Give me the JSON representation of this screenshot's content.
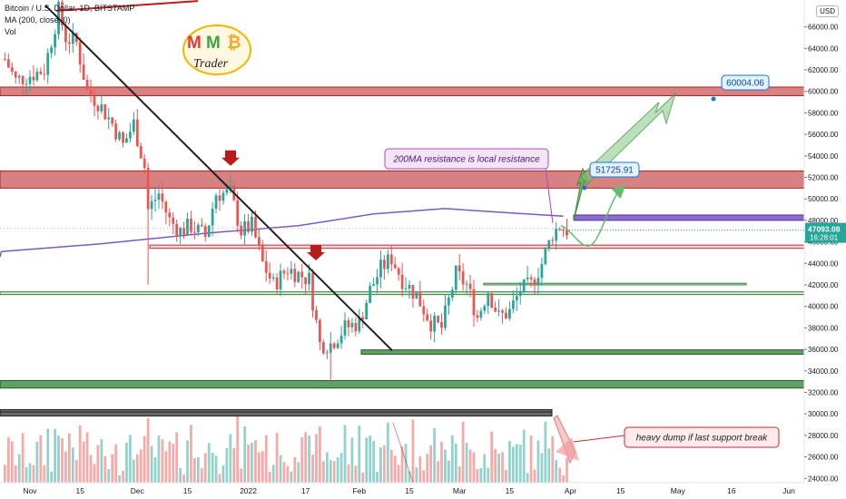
{
  "legend": {
    "symbol_line": "Bitcoin / U.S. Dollar, 1D, BITSTAMP",
    "ma_line": "MA (200, close, 0)",
    "vol_line": "Vol"
  },
  "currency_button": "USD",
  "logo": {
    "line1_a": "M",
    "line1_b": "M",
    "line1_c": "₿",
    "line2": "Trader"
  },
  "colors": {
    "up": "#26a69a",
    "down": "#ef5350",
    "ma": "#7e57c2",
    "resistance_zone": "#b71c1c",
    "support_zone": "#2e7d32",
    "projection": "#66bb6a",
    "callout_bg": "#f3e5f5",
    "callout_border": "#ab47bc"
  },
  "chart_data": {
    "type": "candlestick",
    "title": "Bitcoin / U.S. Dollar, 1D, BITSTAMP",
    "y_axis": {
      "ticks": [
        24000,
        26000,
        28000,
        30000,
        32000,
        34000,
        36000,
        38000,
        40000,
        42000,
        44000,
        46000,
        48000,
        50000,
        52000,
        54000,
        56000,
        58000,
        60000,
        62000,
        64000,
        66000
      ],
      "tick_labels": [
        "24000.00",
        "26000.00",
        "28000.00",
        "30000.00",
        "32000.00",
        "34000.00",
        "36000.00",
        "38000.00",
        "40000.00",
        "42000.00",
        "44000.00",
        "46000.00",
        "48000.00",
        "50000.00",
        "52000.00",
        "54000.00",
        "56000.00",
        "58000.00",
        "60000.00",
        "62000.00",
        "64000.00",
        "66000.00"
      ],
      "range": [
        23600,
        68500
      ]
    },
    "x_axis": {
      "labels": [
        "Nov",
        "15",
        "Dec",
        "15",
        "2022",
        "17",
        "Feb",
        "15",
        "Mar",
        "15",
        "Apr",
        "15",
        "May",
        "16",
        "Jun"
      ],
      "label_dates": [
        "2021-11-01",
        "2021-11-15",
        "2021-12-01",
        "2021-12-15",
        "2022-01-01",
        "2022-01-17",
        "2022-02-01",
        "2022-02-15",
        "2022-03-01",
        "2022-03-15",
        "2022-04-01",
        "2022-04-15",
        "2022-05-01",
        "2022-05-16",
        "2022-06-01"
      ]
    },
    "last_price": "47093.08",
    "countdown": "16:28:01",
    "moving_average": {
      "name": "MA (200, close, 0)",
      "points": [
        [
          "2021-10-24",
          45100
        ],
        [
          "2021-11-20",
          45800
        ],
        [
          "2021-12-20",
          46800
        ],
        [
          "2022-01-15",
          47500
        ],
        [
          "2022-02-05",
          48600
        ],
        [
          "2022-02-25",
          49100
        ],
        [
          "2022-03-15",
          48700
        ],
        [
          "2022-03-30",
          48400
        ]
      ]
    },
    "price_path": [
      [
        "2021-10-25",
        63000
      ],
      [
        "2021-10-28",
        61000
      ],
      [
        "2021-11-01",
        61500
      ],
      [
        "2021-11-05",
        62000
      ],
      [
        "2021-11-09",
        67500
      ],
      [
        "2021-11-11",
        65000
      ],
      [
        "2021-11-14",
        64500
      ],
      [
        "2021-11-17",
        60000
      ],
      [
        "2021-11-20",
        59000
      ],
      [
        "2021-11-24",
        57000
      ],
      [
        "2021-11-27",
        55000
      ],
      [
        "2021-11-30",
        57000
      ],
      [
        "2021-12-03",
        53000
      ],
      [
        "2021-12-04",
        49000
      ],
      [
        "2021-12-07",
        50500
      ],
      [
        "2021-12-10",
        48000
      ],
      [
        "2021-12-13",
        47000
      ],
      [
        "2021-12-16",
        47500
      ],
      [
        "2021-12-20",
        46500
      ],
      [
        "2021-12-23",
        50500
      ],
      [
        "2021-12-27",
        50500
      ],
      [
        "2021-12-30",
        47000
      ],
      [
        "2022-01-02",
        47500
      ],
      [
        "2022-01-05",
        44000
      ],
      [
        "2022-01-08",
        42000
      ],
      [
        "2022-01-12",
        43500
      ],
      [
        "2022-01-15",
        43000
      ],
      [
        "2022-01-18",
        42500
      ],
      [
        "2022-01-21",
        36500
      ],
      [
        "2022-01-24",
        36500
      ],
      [
        "2022-01-28",
        38000
      ],
      [
        "2022-02-01",
        38500
      ],
      [
        "2022-02-04",
        41500
      ],
      [
        "2022-02-07",
        43500
      ],
      [
        "2022-02-10",
        44500
      ],
      [
        "2022-02-13",
        42500
      ],
      [
        "2022-02-17",
        41000
      ],
      [
        "2022-02-21",
        38500
      ],
      [
        "2022-02-24",
        38000
      ],
      [
        "2022-02-28",
        43000
      ],
      [
        "2022-03-03",
        42000
      ],
      [
        "2022-03-06",
        39000
      ],
      [
        "2022-03-09",
        41500
      ],
      [
        "2022-03-12",
        39000
      ],
      [
        "2022-03-15",
        39500
      ],
      [
        "2022-03-18",
        41500
      ],
      [
        "2022-03-21",
        42000
      ],
      [
        "2022-03-24",
        44000
      ],
      [
        "2022-03-27",
        46800
      ],
      [
        "2022-03-29",
        47500
      ],
      [
        "2022-03-31",
        47093
      ]
    ],
    "horizontal_zones": [
      {
        "name": "resistance-60000",
        "low": 59600,
        "high": 60400,
        "style": "resistance"
      },
      {
        "name": "resistance-52000",
        "low": 51000,
        "high": 52600,
        "style": "resistance"
      },
      {
        "name": "ma-resistance-48000",
        "low": 48000,
        "high": 48500,
        "style": "ma"
      },
      {
        "name": "support-45600",
        "low": 45400,
        "high": 45700,
        "style": "thin-resistance"
      },
      {
        "name": "support-42000",
        "low": 42000,
        "high": 42150,
        "style": "thin-support"
      },
      {
        "name": "support-41000",
        "low": 41100,
        "high": 41350,
        "style": "thin-support"
      },
      {
        "name": "support-35800",
        "low": 35550,
        "high": 35950,
        "style": "support"
      },
      {
        "name": "support-32800",
        "low": 32400,
        "high": 33100,
        "style": "support"
      },
      {
        "name": "support-29800",
        "low": 29800,
        "high": 30400,
        "style": "dark"
      }
    ],
    "annotations": [
      {
        "text": "200MA resistance is local resistance"
      },
      {
        "text": "51725.91"
      },
      {
        "text": "60004.06"
      },
      {
        "text": "heavy dump if last support break"
      }
    ]
  }
}
